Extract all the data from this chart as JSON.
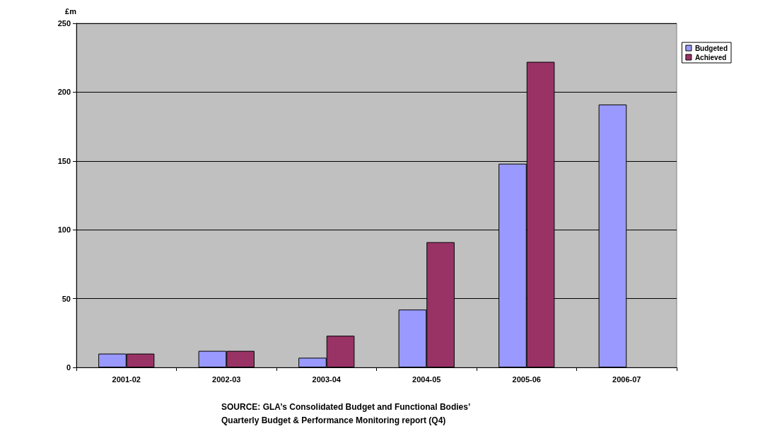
{
  "chart_data": {
    "type": "bar",
    "ylabel": "£m",
    "categories": [
      "2001-02",
      "2002-03",
      "2003-04",
      "2004-05",
      "2005-06",
      "2006-07"
    ],
    "series": [
      {
        "name": "Budgeted",
        "color": "#9999ff",
        "values": [
          10,
          12,
          7,
          42,
          148,
          191
        ]
      },
      {
        "name": "Achieved",
        "color": "#993366",
        "values": [
          10,
          12,
          23,
          91,
          222,
          null
        ]
      }
    ],
    "ylim": [
      0,
      250
    ],
    "yticks": [
      0,
      50,
      100,
      150,
      200,
      250
    ],
    "grid": "y",
    "legend": "top right",
    "annotations": [
      "SOURCE: GLA’s Consolidated Budget and Functional Bodies’ Quarterly Budget & Performance Monitoring report (Q4)"
    ]
  }
}
